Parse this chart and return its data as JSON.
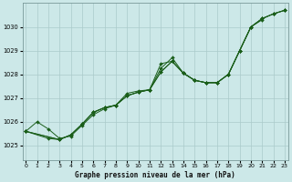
{
  "title": "Graphe pression niveau de la mer (hPa)",
  "bg_color": "#cce8e8",
  "line_color": "#1a5e1a",
  "grid_color": "#aacaca",
  "x_ticks": [
    0,
    1,
    2,
    3,
    4,
    5,
    6,
    7,
    8,
    9,
    10,
    11,
    12,
    13,
    14,
    15,
    16,
    17,
    18,
    19,
    20,
    21,
    22,
    23
  ],
  "y_ticks": [
    1025,
    1026,
    1027,
    1028,
    1029,
    1030
  ],
  "ylim": [
    1024.4,
    1031.0
  ],
  "xlim": [
    -0.3,
    23.3
  ],
  "series_x": [
    [
      0,
      1,
      2,
      3,
      4,
      5,
      6,
      7,
      8,
      9,
      10,
      11,
      12,
      13,
      14,
      15,
      16,
      17,
      18,
      19,
      20,
      21
    ],
    [
      0,
      2,
      3,
      4,
      5,
      6,
      7,
      8,
      9,
      10,
      11,
      12,
      13,
      14,
      15,
      16,
      17,
      18,
      19,
      20,
      21,
      22,
      23
    ],
    [
      0,
      3,
      4,
      5,
      6,
      7,
      8,
      9,
      10,
      11,
      12,
      13,
      14,
      15,
      16,
      17,
      18,
      19,
      20,
      21,
      22,
      23
    ],
    [
      0,
      3,
      4,
      5,
      6,
      7,
      8,
      9,
      10,
      11,
      12,
      13,
      14,
      15,
      16,
      17,
      18,
      19,
      20,
      21,
      22,
      23
    ]
  ],
  "series_y": [
    [
      1025.6,
      1026.0,
      1025.7,
      1025.3,
      1025.4,
      1025.85,
      1026.3,
      1026.55,
      1026.7,
      1027.2,
      1027.3,
      1027.35,
      1028.25,
      1028.7,
      1028.05,
      1027.75,
      1027.65,
      1027.65,
      1028.0,
      1029.0,
      1030.0,
      1030.3
    ],
    [
      1025.6,
      1025.3,
      1025.25,
      1025.45,
      1025.9,
      1026.4,
      1026.6,
      1026.7,
      1027.1,
      1027.25,
      1027.35,
      1028.1,
      1028.55,
      1028.05,
      1027.75,
      1027.65,
      1027.65,
      1028.0,
      1029.0,
      1030.0,
      1030.35,
      1030.55,
      1030.7
    ],
    [
      1025.6,
      1025.25,
      1025.45,
      1025.9,
      1026.4,
      1026.6,
      1026.7,
      1027.1,
      1027.25,
      1027.35,
      1028.1,
      1028.55,
      1028.05,
      1027.75,
      1027.65,
      1027.65,
      1028.0,
      1029.0,
      1030.0,
      1030.35,
      1030.55,
      1030.7
    ],
    [
      1025.6,
      1025.25,
      1025.45,
      1025.9,
      1026.4,
      1026.6,
      1026.7,
      1027.1,
      1027.25,
      1027.35,
      1028.45,
      1028.55,
      1028.05,
      1027.75,
      1027.65,
      1027.65,
      1028.0,
      1029.0,
      1030.0,
      1030.35,
      1030.55,
      1030.7
    ]
  ]
}
